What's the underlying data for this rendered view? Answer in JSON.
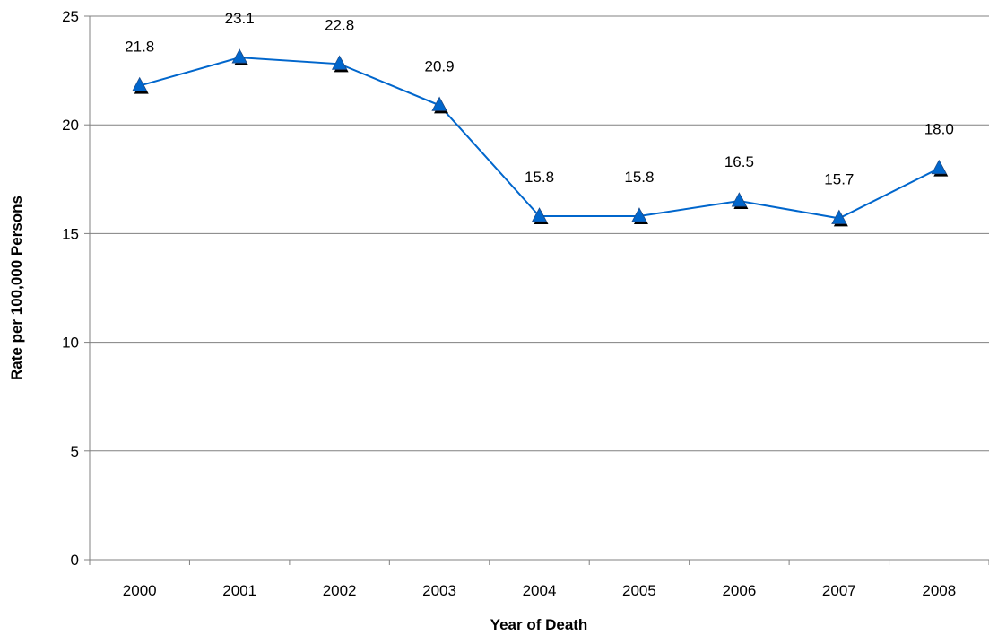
{
  "chart_data": {
    "type": "line",
    "title": "",
    "xlabel": "Year of Death",
    "ylabel": "Rate per 100,000 Persons",
    "categories": [
      "2000",
      "2001",
      "2002",
      "2003",
      "2004",
      "2005",
      "2006",
      "2007",
      "2008"
    ],
    "series": [
      {
        "values": [
          21.8,
          23.1,
          22.8,
          20.9,
          15.8,
          15.8,
          16.5,
          15.7,
          18.0
        ],
        "labels": [
          "21.8",
          "23.1",
          "22.8",
          "20.9",
          "15.8",
          "15.8",
          "16.5",
          "15.7",
          "18.0"
        ],
        "color": "#0066cc",
        "marker": "triangle"
      }
    ],
    "ylim": [
      0,
      25
    ],
    "yticks": [
      "0",
      "5",
      "10",
      "15",
      "20",
      "25"
    ],
    "grid": true,
    "legend": "none"
  }
}
